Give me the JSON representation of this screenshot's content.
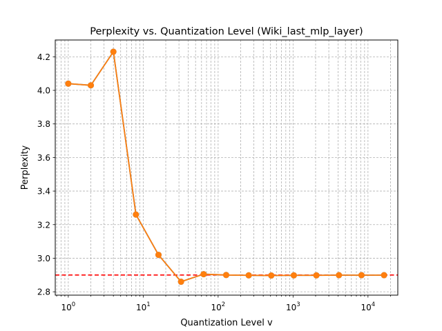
{
  "chart_data": {
    "type": "line",
    "title": "Perplexity vs. Quantization Level (Wiki_last_mlp_layer)",
    "xlabel": "Quantization Level v",
    "ylabel": "Perplexity",
    "x_scale": "log",
    "xlim": [
      0.67,
      25000
    ],
    "ylim": [
      2.78,
      4.3
    ],
    "x_ticks": [
      {
        "value": 1,
        "base": "10",
        "exp": "0"
      },
      {
        "value": 10,
        "base": "10",
        "exp": "1"
      },
      {
        "value": 100,
        "base": "10",
        "exp": "2"
      },
      {
        "value": 1000,
        "base": "10",
        "exp": "3"
      },
      {
        "value": 10000,
        "base": "10",
        "exp": "4"
      }
    ],
    "y_ticks": [
      {
        "value": 2.8,
        "label": "2.8"
      },
      {
        "value": 3.0,
        "label": "3.0"
      },
      {
        "value": 3.2,
        "label": "3.2"
      },
      {
        "value": 3.4,
        "label": "3.4"
      },
      {
        "value": 3.6,
        "label": "3.6"
      },
      {
        "value": 3.8,
        "label": "3.8"
      },
      {
        "value": 4.0,
        "label": "4.0"
      },
      {
        "value": 4.2,
        "label": "4.2"
      }
    ],
    "grid": true,
    "grid_minor": true,
    "series": [
      {
        "color": "#1f77b4",
        "marker": "circle",
        "x": [
          1,
          2,
          4,
          8,
          16,
          32,
          64,
          128,
          256,
          512,
          1024,
          2048,
          4096,
          8192,
          16384
        ],
        "y": [
          4.04,
          4.03,
          4.23,
          3.26,
          3.02,
          2.86,
          2.905,
          2.9,
          2.898,
          2.897,
          2.898,
          2.898,
          2.899,
          2.899,
          2.899
        ]
      },
      {
        "color": "#ff7f0e",
        "marker": "circle",
        "x": [
          1,
          2,
          4,
          8,
          16,
          32,
          64,
          128,
          256,
          512,
          1024,
          2048,
          4096,
          8192,
          16384
        ],
        "y": [
          4.04,
          4.03,
          4.23,
          3.26,
          3.02,
          2.86,
          2.905,
          2.9,
          2.898,
          2.897,
          2.898,
          2.898,
          2.899,
          2.899,
          2.899
        ]
      }
    ],
    "reference_line": {
      "y": 2.9,
      "color": "#ff0000",
      "style": "dashed"
    }
  }
}
